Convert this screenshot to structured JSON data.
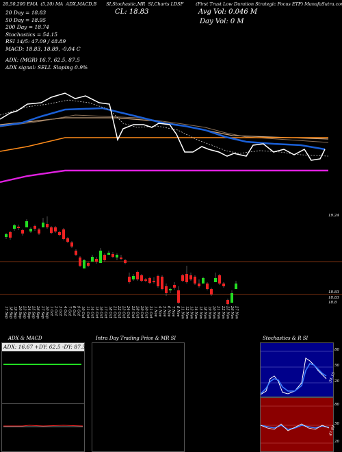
{
  "header": {
    "left": "MunafaSutra.com",
    "items": [
      "20,50,200 EMA",
      "(5,10) MA",
      "ADX,MACD,B",
      "SI,Stochastic,MR",
      "SI,Charts LDSF",
      "(First Trust Low Duration Strategic Focus ETF) MunafaSutra.com"
    ]
  },
  "price_info": {
    "ema20": "20 Day = 18.83",
    "ema50": "50 Day = 18.95",
    "ema200": "200 Day = 18.74",
    "stochastics": "Stochastics = 54.15",
    "rsi": "RSI 14/5: 47.09 / 48.89",
    "macd": "MACD: 18.83, 18.89, -0.04  C",
    "adx": "ADX:                   (MGR) 16.7, 62.5, 87.5",
    "adx_signal": "ADX  signal: SELL  Sloping 0.9%",
    "close": "CL: 18.83",
    "avg_vol": "Avg Vol: 0.046  M",
    "day_vol": "Day Vol: 0  M"
  },
  "axis_labels": {
    "upper_right": "19.24",
    "price_low_1": "18.83",
    "price_low_2": "18.83",
    "price_low_3": "18.8"
  },
  "dates": [
    "17 Sep",
    "18 Sep",
    "19 Sep",
    "20 Sep",
    "23 Sep",
    "24 Sep",
    "25 Sep",
    "26 Sep",
    "27 Sep",
    "30 Sep",
    "1 Oct",
    "2 Oct",
    "3 Oct",
    "4 Oct",
    "7 Oct",
    "8 Oct",
    "9 Oct",
    "10 Oct",
    "11 Oct",
    "14 Oct",
    "15 Oct",
    "16 Oct",
    "17 Oct",
    "18 Oct",
    "21 Oct",
    "22 Oct",
    "23 Oct",
    "24 Oct",
    "25 Oct",
    "28 Oct",
    "29 Oct",
    "30 Oct",
    "31 Oct",
    "1 Nov",
    "4 Nov",
    "5 Nov",
    "6 Nov",
    "7 Nov",
    "8 Nov",
    "11 Nov",
    "12 Nov",
    "13 Nov",
    "14 Nov",
    "15 Nov",
    "18 Nov",
    "19 Nov",
    "20 Nov",
    "21 Nov",
    "22 Nov",
    "25 Nov",
    "26 Nov",
    "27 Nov"
  ],
  "panels": {
    "adx_title": "ADX  & MACD",
    "adx_values": "ADX: 16.67 +DY: 62.5 -DY: 87.5",
    "mrsi_title": "Intra  Day Trading Price  & MR                    SI",
    "stoch_title": "Stochastics & R                    SI",
    "stoch_axis": [
      "80",
      "50",
      "20"
    ],
    "stoch_value": "54.15",
    "rsi_axis": [
      "80",
      "50",
      "20"
    ],
    "rsi_value": "47.09"
  },
  "colors": {
    "ema20": "#1a5fd6",
    "ema50": "#c8a27c",
    "ema200": "#ff8c1a",
    "support": "#e020e0",
    "up": "#22dd22",
    "down": "#ee2222"
  }
}
